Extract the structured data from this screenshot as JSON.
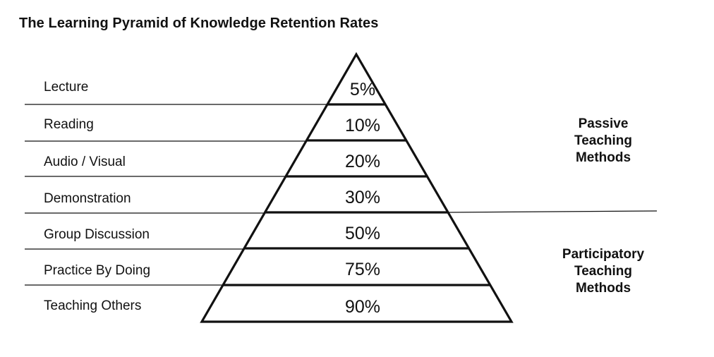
{
  "title": "The Learning Pyramid of Knowledge Retention Rates",
  "levels": [
    {
      "method": "Lecture",
      "retention": "5%"
    },
    {
      "method": "Reading",
      "retention": "10%"
    },
    {
      "method": "Audio / Visual",
      "retention": "20%"
    },
    {
      "method": "Demonstration",
      "retention": "30%"
    },
    {
      "method": "Group Discussion",
      "retention": "50%"
    },
    {
      "method": "Practice By Doing",
      "retention": "75%"
    },
    {
      "method": "Teaching Others",
      "retention": "90%"
    }
  ],
  "groups": [
    {
      "lines": [
        "Passive",
        "Teaching",
        "Methods"
      ]
    },
    {
      "lines": [
        "Participatory",
        "Teaching",
        "Methods"
      ]
    }
  ],
  "colors": {
    "stroke": "#111111",
    "background": "#ffffff"
  }
}
